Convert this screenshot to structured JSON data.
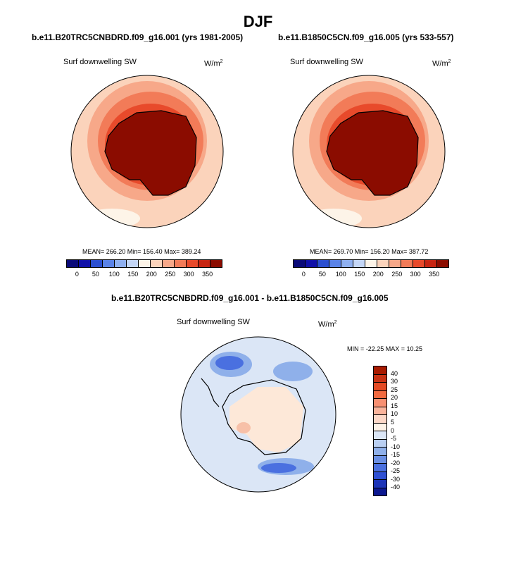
{
  "title": "DJF",
  "panels": [
    {
      "case": "b.e11.B20TRC5CNBDRD.f09_g16.001 (yrs 1981-2005)",
      "variable": "Surf downwelling SW",
      "units": "W/m",
      "units_sup": "2",
      "stats": "MEAN= 266.20  Min= 156.40  Max= 389.24"
    },
    {
      "case": "b.e11.B1850C5CN.f09_g16.005 (yrs 533-557)",
      "variable": "Surf downwelling SW",
      "units": "W/m",
      "units_sup": "2",
      "stats": "MEAN= 269.70  Min= 156.20  Max= 387.72"
    }
  ],
  "abs_colorbar": {
    "colors": [
      "#0a0a78",
      "#1010a8",
      "#2b4fd0",
      "#5a83e8",
      "#8fb0f0",
      "#c4d6f6",
      "#fdf4e8",
      "#fbd3bb",
      "#f7a889",
      "#f27b58",
      "#e84a2b",
      "#c82512",
      "#8b0c00"
    ],
    "labels": [
      "0",
      "50",
      "100",
      "150",
      "200",
      "250",
      "300",
      "350"
    ]
  },
  "diff": {
    "title": "b.e11.B20TRC5CNBDRD.f09_g16.001 - b.e11.B1850C5CN.f09_g16.005",
    "variable": "Surf downwelling SW",
    "units": "W/m",
    "units_sup": "2",
    "stats": "MIN = -22.25  MAX =  10.25"
  },
  "diff_colorbar": {
    "colors": [
      "#a81a00",
      "#c83214",
      "#e44a24",
      "#f26a40",
      "#f89072",
      "#fab49c",
      "#fcd8c8",
      "#fdf3e8",
      "#dbe6f6",
      "#b9cff2",
      "#8fb0ea",
      "#6a8fe4",
      "#4a70e0",
      "#2f50d4",
      "#1c34b8",
      "#0c1890"
    ],
    "labels": [
      "40",
      "30",
      "25",
      "20",
      "15",
      "10",
      "5",
      "0",
      "-5",
      "-10",
      "-15",
      "-20",
      "-25",
      "-30",
      "-40"
    ]
  },
  "map_colors": {
    "ocean_base": "#fbd3bb",
    "ring1": "#f7a889",
    "ring2": "#f27b58",
    "ring3": "#e84a2b",
    "ring4": "#c82512",
    "interior": "#8b0c00",
    "pale": "#fdf4e8",
    "diff_base": "#dbe6f6",
    "diff_pale": "#fde8d8",
    "diff_blue": "#8fb0ea",
    "diff_dark": "#4a70e0",
    "coast": "#000000"
  }
}
